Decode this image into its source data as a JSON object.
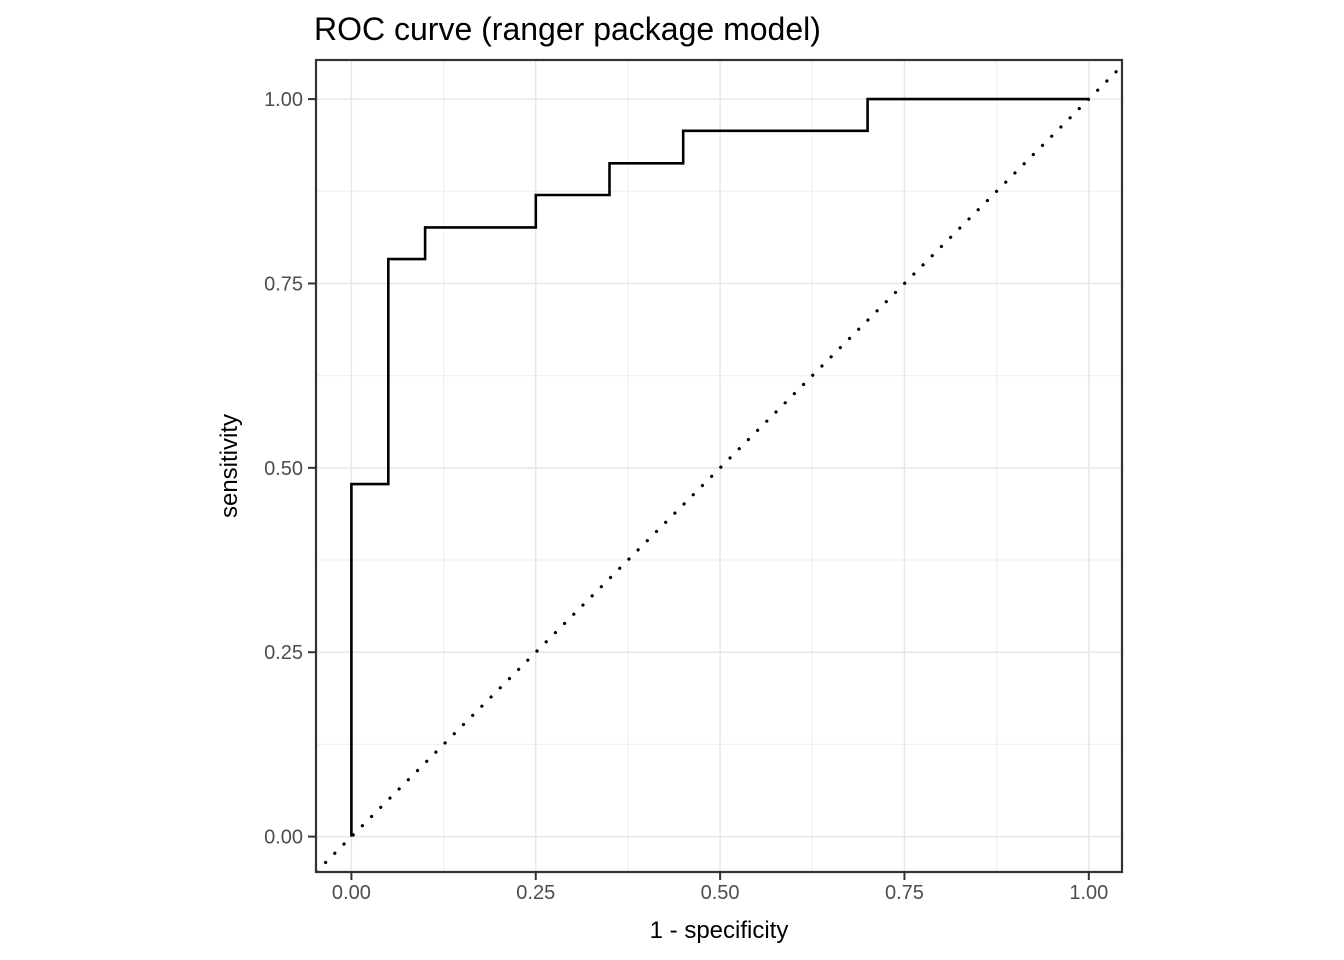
{
  "page": {
    "background": "#ffffff"
  },
  "chart_data": {
    "type": "line",
    "subtype": "roc-step-curve",
    "title": "ROC curve (ranger package model)",
    "xlabel": "1 - specificity",
    "ylabel": "sensitivity",
    "xlim": [
      -0.048,
      1.045
    ],
    "ylim": [
      -0.048,
      1.053
    ],
    "x_ticks": {
      "values": [
        0,
        0.25,
        0.5,
        0.75,
        1
      ],
      "labels": [
        "0.00",
        "0.25",
        "0.50",
        "0.75",
        "1.00"
      ]
    },
    "y_ticks": {
      "values": [
        0,
        0.25,
        0.5,
        0.75,
        1
      ],
      "labels": [
        "0.00",
        "0.25",
        "0.50",
        "0.75",
        "1.00"
      ]
    },
    "minor_gridlines": [
      0.125,
      0.375,
      0.625,
      0.875
    ],
    "grid": {
      "major": true,
      "minor": true
    },
    "legend_position": "none",
    "colors": {
      "roc_line": "#000000",
      "reference_line": "#000000",
      "grid_major": "#e7e7e7",
      "grid_minor": "#f0f0f0",
      "panel_border": "#333333",
      "tick_mark": "#333333",
      "tick_label": "#4d4d4d",
      "title_text": "#000000",
      "axis_title_text": "#000000",
      "panel_background": "#ffffff"
    },
    "series": [
      {
        "name": "ROC curve",
        "style": "solid-step",
        "points": [
          [
            0.0,
            0.0
          ],
          [
            0.0,
            0.478
          ],
          [
            0.05,
            0.478
          ],
          [
            0.05,
            0.783
          ],
          [
            0.1,
            0.783
          ],
          [
            0.1,
            0.826
          ],
          [
            0.25,
            0.826
          ],
          [
            0.25,
            0.87
          ],
          [
            0.35,
            0.87
          ],
          [
            0.35,
            0.913
          ],
          [
            0.45,
            0.913
          ],
          [
            0.45,
            0.957
          ],
          [
            0.7,
            0.957
          ],
          [
            0.7,
            1.0
          ],
          [
            1.0,
            1.0
          ]
        ]
      },
      {
        "name": "chance diagonal",
        "style": "dotted",
        "points": [
          [
            -0.06,
            -0.06
          ],
          [
            1.06,
            1.06
          ]
        ]
      }
    ]
  }
}
